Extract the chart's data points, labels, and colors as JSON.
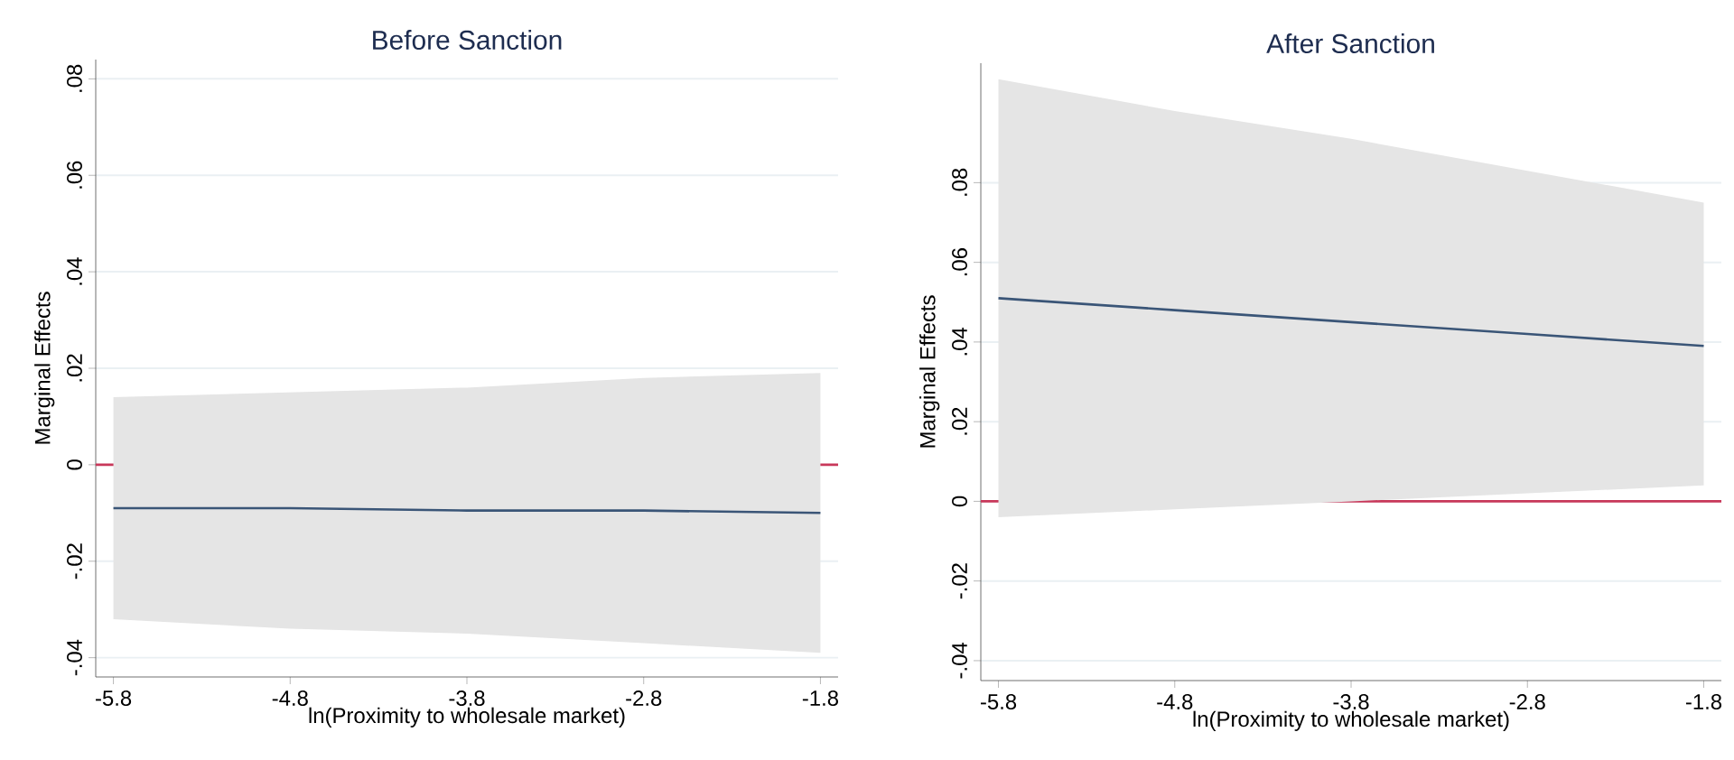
{
  "chart_data": [
    {
      "type": "line",
      "title": "Before Sanction",
      "xlabel": "ln(Proximity to wholesale market)",
      "ylabel": "Marginal Effects",
      "xlim": [
        -5.9,
        -1.7
      ],
      "ylim": [
        -0.044,
        0.084
      ],
      "xticks": [
        -5.8,
        -4.8,
        -3.8,
        -2.8,
        -1.8
      ],
      "yticks": [
        {
          "value": -0.04,
          "label": "-.04"
        },
        {
          "value": -0.02,
          "label": "-.02"
        },
        0,
        {
          "value": 0.02,
          "label": ".02"
        },
        {
          "value": 0.04,
          "label": ".04"
        },
        {
          "value": 0.06,
          "label": ".06"
        },
        {
          "value": 0.08,
          "label": ".08"
        }
      ],
      "grid": "y",
      "ref_lines": [
        {
          "axis": "y",
          "value": 0,
          "color": "#c8385a"
        }
      ],
      "series": [
        {
          "color": "#3a5577",
          "x": [
            -5.8,
            -4.8,
            -3.8,
            -2.8,
            -1.8
          ],
          "values": [
            -0.009,
            -0.009,
            -0.0095,
            -0.0095,
            -0.01
          ],
          "lower": [
            -0.032,
            -0.034,
            -0.035,
            -0.037,
            -0.039
          ],
          "upper": [
            0.014,
            0.015,
            0.016,
            0.018,
            0.019
          ]
        }
      ]
    },
    {
      "type": "line",
      "title": "After Sanction",
      "xlabel": "ln(Proximity to wholesale market)",
      "ylabel": "Marginal Effects",
      "xlim": [
        -5.9,
        -1.7
      ],
      "ylim": [
        -0.045,
        0.11
      ],
      "xticks": [
        -5.8,
        -4.8,
        -3.8,
        -2.8,
        -1.8
      ],
      "yticks": [
        {
          "value": -0.04,
          "label": "-.04"
        },
        {
          "value": -0.02,
          "label": "-.02"
        },
        0,
        {
          "value": 0.02,
          "label": ".02"
        },
        {
          "value": 0.04,
          "label": ".04"
        },
        {
          "value": 0.06,
          "label": ".06"
        },
        {
          "value": 0.08,
          "label": ".08"
        }
      ],
      "grid": "y",
      "ref_lines": [
        {
          "axis": "y",
          "value": 0,
          "color": "#c8385a"
        }
      ],
      "series": [
        {
          "color": "#3a5577",
          "x": [
            -5.8,
            -4.8,
            -3.8,
            -2.8,
            -1.8
          ],
          "values": [
            0.051,
            0.048,
            0.045,
            0.042,
            0.039
          ],
          "lower": [
            -0.004,
            -0.002,
            0.0,
            0.002,
            0.004
          ],
          "upper": [
            0.106,
            0.098,
            0.091,
            0.083,
            0.075
          ]
        }
      ]
    }
  ]
}
